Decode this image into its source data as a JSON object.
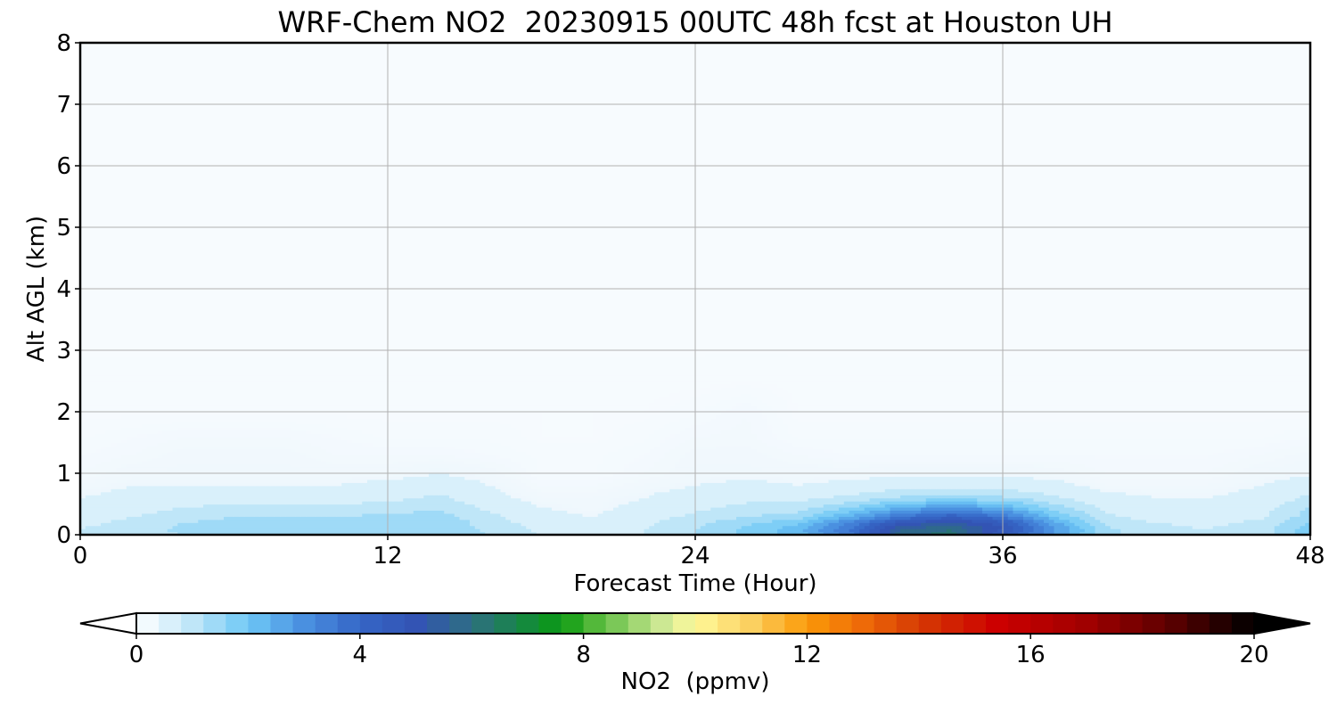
{
  "chart_data": {
    "type": "heatmap",
    "title": "WRF-Chem NO2  20230915 00UTC 48h fcst at Houston UH",
    "xlabel": "Forecast Time (Hour)",
    "ylabel": "Alt AGL (km)",
    "xlim": [
      0,
      48
    ],
    "ylim": [
      0,
      8
    ],
    "x_ticks": [
      0,
      12,
      24,
      36,
      48
    ],
    "y_ticks": [
      0,
      1,
      2,
      3,
      4,
      5,
      6,
      7,
      8
    ],
    "grid": true,
    "x": [
      0,
      2,
      4,
      6,
      8,
      10,
      12,
      14,
      16,
      18,
      20,
      22,
      24,
      26,
      28,
      30,
      32,
      34,
      36,
      38,
      40,
      42,
      44,
      46,
      48
    ],
    "y": [
      0,
      0.1,
      0.2,
      0.3,
      0.45,
      0.6,
      0.8,
      1.0,
      1.3,
      1.6,
      2.0,
      2.5,
      3,
      4,
      5,
      6,
      7,
      8
    ],
    "z": [
      [
        0.9,
        1.0,
        1.2,
        1.4,
        1.4,
        1.5,
        1.5,
        1.6,
        1.2,
        0.8,
        0.6,
        0.8,
        1.2,
        1.7,
        2.2,
        3.4,
        5.8,
        6.2,
        4.4,
        2.8,
        1.3,
        0.9,
        0.8,
        1.0,
        1.8
      ],
      [
        0.8,
        1.0,
        1.3,
        1.5,
        1.5,
        1.5,
        1.6,
        1.6,
        1.1,
        0.7,
        0.6,
        0.8,
        1.2,
        1.7,
        2.2,
        3.6,
        5.6,
        6.0,
        4.8,
        2.9,
        1.3,
        0.9,
        0.8,
        1.0,
        1.8
      ],
      [
        0.7,
        0.9,
        1.2,
        1.4,
        1.4,
        1.4,
        1.5,
        1.5,
        1.0,
        0.6,
        0.5,
        0.7,
        1.1,
        1.5,
        1.9,
        3.2,
        4.8,
        5.3,
        4.6,
        2.6,
        1.1,
        0.8,
        0.7,
        0.9,
        1.6
      ],
      [
        0.6,
        0.8,
        1.0,
        1.2,
        1.2,
        1.2,
        1.3,
        1.4,
        0.9,
        0.5,
        0.4,
        0.6,
        0.9,
        1.2,
        1.4,
        2.4,
        3.6,
        4.3,
        3.6,
        2.0,
        0.9,
        0.6,
        0.6,
        0.7,
        1.4
      ],
      [
        0.5,
        0.6,
        0.8,
        0.9,
        0.9,
        0.9,
        1.0,
        1.1,
        0.7,
        0.4,
        0.3,
        0.5,
        0.7,
        0.9,
        1.0,
        1.6,
        2.4,
        2.8,
        2.4,
        1.4,
        0.7,
        0.5,
        0.5,
        0.6,
        1.2
      ],
      [
        0.4,
        0.5,
        0.6,
        0.6,
        0.6,
        0.6,
        0.7,
        0.9,
        0.5,
        0.3,
        0.3,
        0.4,
        0.6,
        0.7,
        0.7,
        0.9,
        1.3,
        1.5,
        1.3,
        0.9,
        0.5,
        0.4,
        0.4,
        0.5,
        0.9
      ],
      [
        0.3,
        0.4,
        0.4,
        0.4,
        0.4,
        0.4,
        0.5,
        0.6,
        0.4,
        0.2,
        0.2,
        0.3,
        0.4,
        0.5,
        0.4,
        0.5,
        0.6,
        0.7,
        0.6,
        0.5,
        0.3,
        0.3,
        0.3,
        0.4,
        0.6
      ],
      [
        0.2,
        0.3,
        0.3,
        0.3,
        0.3,
        0.3,
        0.3,
        0.4,
        0.3,
        0.1,
        0.1,
        0.2,
        0.3,
        0.3,
        0.3,
        0.3,
        0.35,
        0.35,
        0.35,
        0.3,
        0.2,
        0.2,
        0.2,
        0.3,
        0.35
      ],
      [
        0.15,
        0.2,
        0.28,
        0.28,
        0.28,
        0.2,
        0.2,
        0.2,
        0.15,
        0.1,
        0.1,
        0.15,
        0.28,
        0.28,
        0.2,
        0.15,
        0.15,
        0.15,
        0.15,
        0.15,
        0.15,
        0.15,
        0.15,
        0.2,
        0.28
      ],
      [
        0.1,
        0.15,
        0.2,
        0.2,
        0.2,
        0.15,
        0.1,
        0.1,
        0.1,
        0.05,
        0.05,
        0.1,
        0.2,
        0.22,
        0.1,
        0.1,
        0.1,
        0.1,
        0.1,
        0.1,
        0.1,
        0.1,
        0.1,
        0.1,
        0.15
      ],
      [
        0.05,
        0.05,
        0.05,
        0.05,
        0.05,
        0.05,
        0.05,
        0.05,
        0.05,
        0.05,
        0.05,
        0.05,
        0.1,
        0.2,
        0.05,
        0.05,
        0.05,
        0.05,
        0.05,
        0.05,
        0.05,
        0.05,
        0.05,
        0.05,
        0.05
      ],
      [
        0.03,
        0.03,
        0.03,
        0.03,
        0.03,
        0.03,
        0.03,
        0.03,
        0.03,
        0.03,
        0.03,
        0.03,
        0.03,
        0.05,
        0.03,
        0.03,
        0.03,
        0.03,
        0.03,
        0.03,
        0.03,
        0.03,
        0.03,
        0.03,
        0.03
      ],
      [
        0.02,
        0.02,
        0.02,
        0.02,
        0.02,
        0.02,
        0.02,
        0.02,
        0.02,
        0.02,
        0.02,
        0.02,
        0.02,
        0.02,
        0.02,
        0.02,
        0.02,
        0.02,
        0.02,
        0.02,
        0.02,
        0.02,
        0.02,
        0.02,
        0.02
      ],
      [
        0.02,
        0.02,
        0.02,
        0.02,
        0.02,
        0.02,
        0.02,
        0.02,
        0.02,
        0.02,
        0.02,
        0.02,
        0.02,
        0.02,
        0.02,
        0.02,
        0.02,
        0.02,
        0.02,
        0.02,
        0.02,
        0.02,
        0.02,
        0.02,
        0.02
      ],
      [
        0.02,
        0.02,
        0.02,
        0.02,
        0.02,
        0.02,
        0.02,
        0.02,
        0.02,
        0.02,
        0.02,
        0.02,
        0.02,
        0.02,
        0.02,
        0.02,
        0.02,
        0.02,
        0.02,
        0.02,
        0.02,
        0.02,
        0.02,
        0.02,
        0.02
      ],
      [
        0.02,
        0.02,
        0.02,
        0.02,
        0.02,
        0.02,
        0.02,
        0.02,
        0.02,
        0.02,
        0.02,
        0.02,
        0.02,
        0.02,
        0.02,
        0.02,
        0.02,
        0.02,
        0.02,
        0.02,
        0.02,
        0.02,
        0.02,
        0.02,
        0.02
      ],
      [
        0.02,
        0.02,
        0.02,
        0.02,
        0.02,
        0.02,
        0.02,
        0.02,
        0.02,
        0.02,
        0.02,
        0.02,
        0.02,
        0.02,
        0.02,
        0.02,
        0.02,
        0.02,
        0.02,
        0.02,
        0.02,
        0.02,
        0.02,
        0.02,
        0.02
      ],
      [
        0.02,
        0.02,
        0.02,
        0.02,
        0.02,
        0.02,
        0.02,
        0.02,
        0.02,
        0.02,
        0.02,
        0.02,
        0.02,
        0.02,
        0.02,
        0.02,
        0.02,
        0.02,
        0.02,
        0.02,
        0.02,
        0.02,
        0.02,
        0.02,
        0.02
      ]
    ],
    "colorbar": {
      "label": "NO2  (ppmv)",
      "min": 0,
      "max": 20,
      "step": 0.4,
      "ticks": [
        0,
        4,
        8,
        12,
        16,
        20
      ],
      "extend": "both",
      "under_color": "#ffffff",
      "over_color": "#000000",
      "color_stops": [
        [
          0,
          "#ffffff"
        ],
        [
          1,
          "#bfe6f8"
        ],
        [
          2,
          "#6ec8f6"
        ],
        [
          3,
          "#4a90e0"
        ],
        [
          4,
          "#3566c6"
        ],
        [
          5,
          "#3354b4"
        ],
        [
          6,
          "#2e6e82"
        ],
        [
          7,
          "#148a3c"
        ],
        [
          7.6,
          "#0a9a10"
        ],
        [
          8.2,
          "#53b83a"
        ],
        [
          9.5,
          "#d6ec9a"
        ],
        [
          10,
          "#fff99a"
        ],
        [
          11,
          "#fbd060"
        ],
        [
          12,
          "#fb9a08"
        ],
        [
          13,
          "#ee6a08"
        ],
        [
          14,
          "#d53a04"
        ],
        [
          15.4,
          "#cc0000"
        ],
        [
          17,
          "#a00000"
        ],
        [
          18.5,
          "#5c0000"
        ],
        [
          20,
          "#000000"
        ]
      ]
    }
  }
}
